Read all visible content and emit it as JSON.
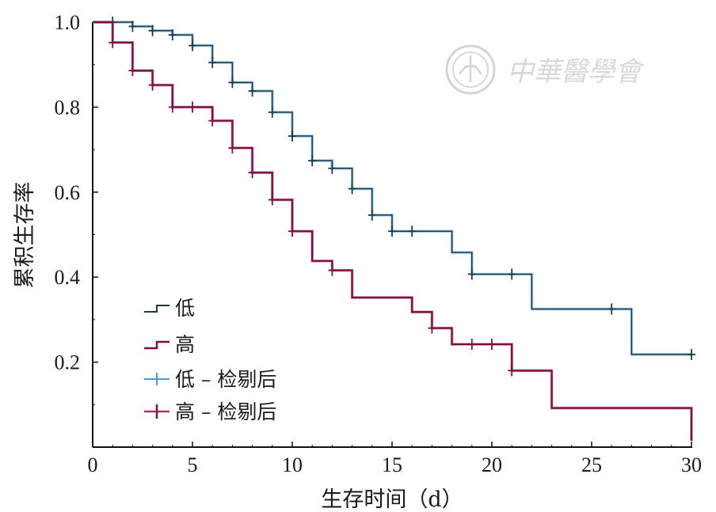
{
  "chart_data": {
    "type": "line",
    "subtype": "kaplan-meier-step",
    "xlabel": "生存时间（d）",
    "ylabel": "累积生存率",
    "xlim": [
      0,
      30
    ],
    "ylim": [
      0,
      1.0
    ],
    "x_ticks": [
      0,
      5,
      10,
      15,
      20,
      25,
      30
    ],
    "y_ticks": [
      0.2,
      0.4,
      0.6,
      0.8,
      1.0
    ],
    "x_tick_labels": [
      "0",
      "5",
      "10",
      "15",
      "20",
      "25",
      "30"
    ],
    "y_tick_labels": [
      "0.2",
      "0.4",
      "0.6",
      "0.8",
      "1.0"
    ],
    "grid": false,
    "legend_position": "bottom-left",
    "series": [
      {
        "name": "低",
        "color": "#1e3a4a",
        "steps": [
          [
            0,
            1.0
          ],
          [
            1,
            1.0
          ],
          [
            2,
            0.99
          ],
          [
            3,
            0.98
          ],
          [
            4,
            0.97
          ],
          [
            5,
            0.945
          ],
          [
            6,
            0.905
          ],
          [
            7,
            0.858
          ],
          [
            8,
            0.838
          ],
          [
            9,
            0.788
          ],
          [
            10,
            0.732
          ],
          [
            11,
            0.674
          ],
          [
            12,
            0.656
          ],
          [
            13,
            0.608
          ],
          [
            14,
            0.546
          ],
          [
            15,
            0.508
          ],
          [
            18,
            0.458
          ],
          [
            19,
            0.407
          ],
          [
            22,
            0.325
          ],
          [
            27,
            0.218
          ],
          [
            30,
            0.218
          ]
        ],
        "censored_label": "低 – 检剔后",
        "censored_color": "#4a9fcf",
        "censored": [
          [
            1.0,
            1.0
          ],
          [
            2.0,
            0.99
          ],
          [
            3.0,
            0.98
          ],
          [
            4.0,
            0.97
          ],
          [
            5.0,
            0.945
          ],
          [
            6.0,
            0.905
          ],
          [
            7.0,
            0.858
          ],
          [
            8.0,
            0.838
          ],
          [
            9.0,
            0.788
          ],
          [
            10.0,
            0.732
          ],
          [
            11.0,
            0.674
          ],
          [
            12.0,
            0.656
          ],
          [
            13.0,
            0.608
          ],
          [
            14.0,
            0.546
          ],
          [
            15.0,
            0.508
          ],
          [
            16.0,
            0.508
          ],
          [
            19.0,
            0.407
          ],
          [
            21.0,
            0.407
          ],
          [
            26.0,
            0.325
          ],
          [
            30.0,
            0.218
          ]
        ]
      },
      {
        "name": "高",
        "color": "#7a1040",
        "steps": [
          [
            0,
            1.0
          ],
          [
            1,
            0.952
          ],
          [
            2,
            0.886
          ],
          [
            3,
            0.852
          ],
          [
            4,
            0.8
          ],
          [
            6,
            0.768
          ],
          [
            7,
            0.704
          ],
          [
            8,
            0.646
          ],
          [
            9,
            0.582
          ],
          [
            10,
            0.508
          ],
          [
            11,
            0.438
          ],
          [
            12,
            0.416
          ],
          [
            13,
            0.352
          ],
          [
            16,
            0.318
          ],
          [
            17,
            0.28
          ],
          [
            18,
            0.242
          ],
          [
            21,
            0.18
          ],
          [
            23,
            0.092
          ],
          [
            30,
            0.015
          ]
        ],
        "censored_label": "高 – 检剔后",
        "censored_color": "#b0306a",
        "censored": [
          [
            1.0,
            0.952
          ],
          [
            2.0,
            0.886
          ],
          [
            3.0,
            0.852
          ],
          [
            4.0,
            0.8
          ],
          [
            5.0,
            0.8
          ],
          [
            6.0,
            0.768
          ],
          [
            7.0,
            0.704
          ],
          [
            8.0,
            0.646
          ],
          [
            9.0,
            0.582
          ],
          [
            10.0,
            0.508
          ],
          [
            12.0,
            0.416
          ],
          [
            17.0,
            0.28
          ],
          [
            19.0,
            0.242
          ],
          [
            20.0,
            0.242
          ],
          [
            21.0,
            0.18
          ]
        ]
      }
    ]
  },
  "watermark": {
    "text": "中華醫學會",
    "seal_icon": "cma-seal-icon"
  }
}
